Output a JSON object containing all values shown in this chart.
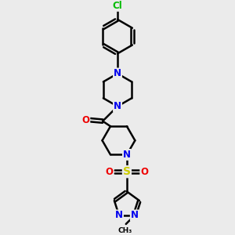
{
  "background_color": "#ebebeb",
  "bond_color": "#000000",
  "bond_width": 1.8,
  "atom_colors": {
    "N": "#0000ee",
    "O": "#ee0000",
    "S": "#cccc00",
    "Cl": "#00bb00",
    "C": "#000000"
  },
  "font_size_atom": 8.5,
  "title": ""
}
